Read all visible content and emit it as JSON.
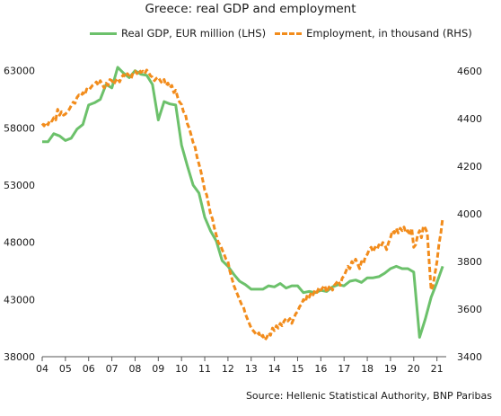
{
  "title": "Greece: real GDP and employment",
  "source": "Source: Hellenic Statistical Authority, BNP Paribas",
  "colors": {
    "gdp": "#6cc16b",
    "employment": "#f28c1c",
    "axis": "#555555"
  },
  "chart_data": {
    "type": "line",
    "title": "Greece: real GDP and employment",
    "x_tick_labels": [
      "04",
      "05",
      "06",
      "07",
      "08",
      "09",
      "10",
      "11",
      "12",
      "13",
      "14",
      "15",
      "16",
      "17",
      "18",
      "19",
      "20",
      "21"
    ],
    "xlim": [
      2004,
      2021.4
    ],
    "y_left": {
      "ylim": [
        38000,
        64000
      ],
      "ticks": [
        "38000",
        "43000",
        "48000",
        "53000",
        "58000",
        "63000"
      ]
    },
    "y_right": {
      "ylim": [
        3400,
        4650
      ],
      "ticks": [
        "3400",
        "3600",
        "3800",
        "4000",
        "4200",
        "4400",
        "4600"
      ]
    },
    "grid": false,
    "legend_position": "top",
    "series": [
      {
        "name": "Real GDP, EUR million (LHS)",
        "axis": "left",
        "style": "solid",
        "color": "#6cc16b",
        "points": [
          [
            2004.0,
            56800
          ],
          [
            2004.25,
            56800
          ],
          [
            2004.5,
            57500
          ],
          [
            2004.75,
            57300
          ],
          [
            2005.0,
            56900
          ],
          [
            2005.25,
            57100
          ],
          [
            2005.5,
            57900
          ],
          [
            2005.75,
            58300
          ],
          [
            2006.0,
            60000
          ],
          [
            2006.25,
            60200
          ],
          [
            2006.5,
            60500
          ],
          [
            2006.75,
            61800
          ],
          [
            2007.0,
            61500
          ],
          [
            2007.25,
            63300
          ],
          [
            2007.5,
            62800
          ],
          [
            2007.75,
            62400
          ],
          [
            2008.0,
            63000
          ],
          [
            2008.25,
            62700
          ],
          [
            2008.5,
            62600
          ],
          [
            2008.75,
            61800
          ],
          [
            2009.0,
            58700
          ],
          [
            2009.25,
            60300
          ],
          [
            2009.5,
            60100
          ],
          [
            2009.75,
            60000
          ],
          [
            2010.0,
            56500
          ],
          [
            2010.25,
            54700
          ],
          [
            2010.5,
            53000
          ],
          [
            2010.75,
            52300
          ],
          [
            2011.0,
            50200
          ],
          [
            2011.25,
            49000
          ],
          [
            2011.5,
            48100
          ],
          [
            2011.75,
            46400
          ],
          [
            2012.0,
            45900
          ],
          [
            2012.25,
            45200
          ],
          [
            2012.5,
            44600
          ],
          [
            2012.75,
            44300
          ],
          [
            2013.0,
            43900
          ],
          [
            2013.25,
            43900
          ],
          [
            2013.5,
            43900
          ],
          [
            2013.75,
            44200
          ],
          [
            2014.0,
            44100
          ],
          [
            2014.25,
            44400
          ],
          [
            2014.5,
            44000
          ],
          [
            2014.75,
            44200
          ],
          [
            2015.0,
            44200
          ],
          [
            2015.25,
            43600
          ],
          [
            2015.5,
            43700
          ],
          [
            2015.75,
            43600
          ],
          [
            2016.0,
            43800
          ],
          [
            2016.25,
            43700
          ],
          [
            2016.5,
            44100
          ],
          [
            2016.75,
            44300
          ],
          [
            2017.0,
            44200
          ],
          [
            2017.25,
            44600
          ],
          [
            2017.5,
            44700
          ],
          [
            2017.75,
            44500
          ],
          [
            2018.0,
            44900
          ],
          [
            2018.25,
            44900
          ],
          [
            2018.5,
            45000
          ],
          [
            2018.75,
            45300
          ],
          [
            2019.0,
            45700
          ],
          [
            2019.25,
            45900
          ],
          [
            2019.5,
            45700
          ],
          [
            2019.75,
            45700
          ],
          [
            2020.0,
            45400
          ],
          [
            2020.25,
            39700
          ],
          [
            2020.5,
            41300
          ],
          [
            2020.75,
            43200
          ],
          [
            2021.0,
            44500
          ],
          [
            2021.25,
            45900
          ]
        ]
      },
      {
        "name": "Employment, in thousand (RHS)",
        "axis": "right",
        "style": "dashed",
        "color": "#f28c1c",
        "points": [
          [
            2004.0,
            4380
          ],
          [
            2004.083,
            4370
          ],
          [
            2004.167,
            4385
          ],
          [
            2004.25,
            4375
          ],
          [
            2004.333,
            4395
          ],
          [
            2004.417,
            4390
          ],
          [
            2004.5,
            4405
          ],
          [
            2004.583,
            4395
          ],
          [
            2004.667,
            4440
          ],
          [
            2004.75,
            4415
          ],
          [
            2004.833,
            4430
          ],
          [
            2004.917,
            4415
          ],
          [
            2005.0,
            4420
          ],
          [
            2005.083,
            4430
          ],
          [
            2005.167,
            4440
          ],
          [
            2005.25,
            4455
          ],
          [
            2005.333,
            4470
          ],
          [
            2005.417,
            4465
          ],
          [
            2005.5,
            4490
          ],
          [
            2005.583,
            4500
          ],
          [
            2005.667,
            4495
          ],
          [
            2005.75,
            4510
          ],
          [
            2005.833,
            4500
          ],
          [
            2005.917,
            4525
          ],
          [
            2006.0,
            4520
          ],
          [
            2006.083,
            4530
          ],
          [
            2006.167,
            4540
          ],
          [
            2006.25,
            4545
          ],
          [
            2006.333,
            4555
          ],
          [
            2006.417,
            4540
          ],
          [
            2006.5,
            4560
          ],
          [
            2006.583,
            4545
          ],
          [
            2006.667,
            4530
          ],
          [
            2006.75,
            4550
          ],
          [
            2006.833,
            4540
          ],
          [
            2006.917,
            4565
          ],
          [
            2007.0,
            4560
          ],
          [
            2007.083,
            4545
          ],
          [
            2007.167,
            4560
          ],
          [
            2007.25,
            4570
          ],
          [
            2007.333,
            4555
          ],
          [
            2007.417,
            4575
          ],
          [
            2007.5,
            4585
          ],
          [
            2007.583,
            4575
          ],
          [
            2007.667,
            4590
          ],
          [
            2007.75,
            4580
          ],
          [
            2007.833,
            4570
          ],
          [
            2007.917,
            4595
          ],
          [
            2008.0,
            4600
          ],
          [
            2008.083,
            4590
          ],
          [
            2008.167,
            4605
          ],
          [
            2008.25,
            4595
          ],
          [
            2008.333,
            4600
          ],
          [
            2008.417,
            4590
          ],
          [
            2008.5,
            4605
          ],
          [
            2008.583,
            4595
          ],
          [
            2008.667,
            4580
          ],
          [
            2008.75,
            4575
          ],
          [
            2008.833,
            4560
          ],
          [
            2008.917,
            4570
          ],
          [
            2009.0,
            4575
          ],
          [
            2009.083,
            4560
          ],
          [
            2009.167,
            4550
          ],
          [
            2009.25,
            4565
          ],
          [
            2009.333,
            4540
          ],
          [
            2009.417,
            4550
          ],
          [
            2009.5,
            4530
          ],
          [
            2009.583,
            4540
          ],
          [
            2009.667,
            4510
          ],
          [
            2009.75,
            4520
          ],
          [
            2009.833,
            4490
          ],
          [
            2009.917,
            4470
          ],
          [
            2010.0,
            4460
          ],
          [
            2010.083,
            4430
          ],
          [
            2010.167,
            4420
          ],
          [
            2010.25,
            4380
          ],
          [
            2010.333,
            4360
          ],
          [
            2010.417,
            4330
          ],
          [
            2010.5,
            4300
          ],
          [
            2010.583,
            4280
          ],
          [
            2010.667,
            4240
          ],
          [
            2010.75,
            4210
          ],
          [
            2010.833,
            4180
          ],
          [
            2010.917,
            4140
          ],
          [
            2011.0,
            4100
          ],
          [
            2011.083,
            4080
          ],
          [
            2011.167,
            4040
          ],
          [
            2011.25,
            4000
          ],
          [
            2011.333,
            3980
          ],
          [
            2011.417,
            3940
          ],
          [
            2011.5,
            3910
          ],
          [
            2011.583,
            3880
          ],
          [
            2011.667,
            3870
          ],
          [
            2011.75,
            3850
          ],
          [
            2011.833,
            3830
          ],
          [
            2011.917,
            3810
          ],
          [
            2012.0,
            3800
          ],
          [
            2012.083,
            3760
          ],
          [
            2012.167,
            3730
          ],
          [
            2012.25,
            3700
          ],
          [
            2012.333,
            3680
          ],
          [
            2012.417,
            3660
          ],
          [
            2012.5,
            3640
          ],
          [
            2012.583,
            3620
          ],
          [
            2012.667,
            3610
          ],
          [
            2012.75,
            3580
          ],
          [
            2012.833,
            3560
          ],
          [
            2012.917,
            3540
          ],
          [
            2013.0,
            3520
          ],
          [
            2013.083,
            3510
          ],
          [
            2013.167,
            3500
          ],
          [
            2013.25,
            3490
          ],
          [
            2013.333,
            3500
          ],
          [
            2013.417,
            3480
          ],
          [
            2013.5,
            3490
          ],
          [
            2013.583,
            3470
          ],
          [
            2013.667,
            3480
          ],
          [
            2013.75,
            3500
          ],
          [
            2013.833,
            3490
          ],
          [
            2013.917,
            3520
          ],
          [
            2014.0,
            3510
          ],
          [
            2014.083,
            3530
          ],
          [
            2014.167,
            3520
          ],
          [
            2014.25,
            3540
          ],
          [
            2014.333,
            3530
          ],
          [
            2014.417,
            3550
          ],
          [
            2014.5,
            3560
          ],
          [
            2014.583,
            3550
          ],
          [
            2014.667,
            3560
          ],
          [
            2014.75,
            3540
          ],
          [
            2014.833,
            3560
          ],
          [
            2014.917,
            3580
          ],
          [
            2015.0,
            3590
          ],
          [
            2015.083,
            3610
          ],
          [
            2015.167,
            3620
          ],
          [
            2015.25,
            3640
          ],
          [
            2015.333,
            3630
          ],
          [
            2015.417,
            3660
          ],
          [
            2015.5,
            3650
          ],
          [
            2015.583,
            3670
          ],
          [
            2015.667,
            3660
          ],
          [
            2015.75,
            3680
          ],
          [
            2015.833,
            3670
          ],
          [
            2015.917,
            3690
          ],
          [
            2016.0,
            3680
          ],
          [
            2016.083,
            3690
          ],
          [
            2016.167,
            3700
          ],
          [
            2016.25,
            3670
          ],
          [
            2016.333,
            3690
          ],
          [
            2016.417,
            3700
          ],
          [
            2016.5,
            3680
          ],
          [
            2016.583,
            3700
          ],
          [
            2016.667,
            3710
          ],
          [
            2016.75,
            3720
          ],
          [
            2016.833,
            3700
          ],
          [
            2016.917,
            3730
          ],
          [
            2017.0,
            3740
          ],
          [
            2017.083,
            3760
          ],
          [
            2017.167,
            3780
          ],
          [
            2017.25,
            3770
          ],
          [
            2017.333,
            3800
          ],
          [
            2017.417,
            3790
          ],
          [
            2017.5,
            3810
          ],
          [
            2017.583,
            3790
          ],
          [
            2017.667,
            3770
          ],
          [
            2017.75,
            3800
          ],
          [
            2017.833,
            3790
          ],
          [
            2017.917,
            3820
          ],
          [
            2018.0,
            3830
          ],
          [
            2018.083,
            3850
          ],
          [
            2018.167,
            3860
          ],
          [
            2018.25,
            3840
          ],
          [
            2018.333,
            3860
          ],
          [
            2018.417,
            3850
          ],
          [
            2018.5,
            3870
          ],
          [
            2018.583,
            3860
          ],
          [
            2018.667,
            3880
          ],
          [
            2018.75,
            3870
          ],
          [
            2018.833,
            3850
          ],
          [
            2018.917,
            3880
          ],
          [
            2019.0,
            3900
          ],
          [
            2019.083,
            3930
          ],
          [
            2019.167,
            3920
          ],
          [
            2019.25,
            3940
          ],
          [
            2019.333,
            3920
          ],
          [
            2019.417,
            3940
          ],
          [
            2019.5,
            3930
          ],
          [
            2019.583,
            3945
          ],
          [
            2019.667,
            3920
          ],
          [
            2019.75,
            3930
          ],
          [
            2019.833,
            3910
          ],
          [
            2019.917,
            3940
          ],
          [
            2020.0,
            3860
          ],
          [
            2020.083,
            3870
          ],
          [
            2020.167,
            3910
          ],
          [
            2020.25,
            3930
          ],
          [
            2020.333,
            3900
          ],
          [
            2020.417,
            3950
          ],
          [
            2020.5,
            3940
          ],
          [
            2020.583,
            3920
          ],
          [
            2020.667,
            3800
          ],
          [
            2020.75,
            3680
          ],
          [
            2020.833,
            3700
          ],
          [
            2020.917,
            3750
          ],
          [
            2021.0,
            3800
          ],
          [
            2021.083,
            3870
          ],
          [
            2021.167,
            3920
          ],
          [
            2021.25,
            3985
          ]
        ]
      }
    ]
  }
}
